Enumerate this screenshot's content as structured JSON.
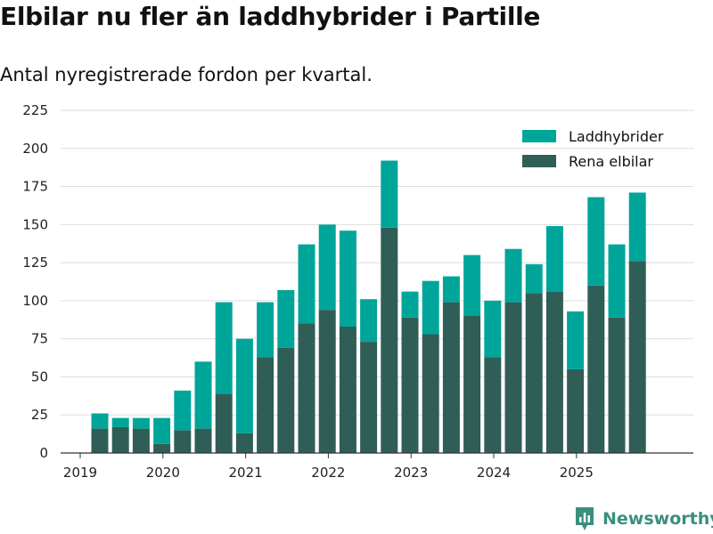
{
  "title": "Elbilar nu fler än laddhybrider i Partille",
  "subtitle": "Antal nyregistrerade fordon per kvartal.",
  "brand": "Newsworthy",
  "colors": {
    "laddhybrider": "#00a59a",
    "elbilar": "#2f5e56",
    "grid": "#dddddd",
    "axis": "#333333",
    "brand": "#3a8f7c"
  },
  "chart_data": {
    "type": "bar",
    "stacked": true,
    "title": "Elbilar nu fler än laddhybrider i Partille",
    "subtitle": "Antal nyregistrerade fordon per kvartal.",
    "xlabel": "",
    "ylabel": "",
    "ylim": [
      0,
      225
    ],
    "yticks": [
      0,
      25,
      50,
      75,
      100,
      125,
      150,
      175,
      200,
      225
    ],
    "year_ticks": [
      "2019",
      "2020",
      "2021",
      "2022",
      "2023",
      "2024",
      "2025"
    ],
    "grid": true,
    "legend_position": "top-right",
    "categories": [
      "2019 Q1",
      "2019 Q2",
      "2019 Q3",
      "2019 Q4",
      "2020 Q1",
      "2020 Q2",
      "2020 Q3",
      "2020 Q4",
      "2021 Q1",
      "2021 Q2",
      "2021 Q3",
      "2021 Q4",
      "2022 Q1",
      "2022 Q2",
      "2022 Q3",
      "2022 Q4",
      "2023 Q1",
      "2023 Q2",
      "2023 Q3",
      "2023 Q4",
      "2024 Q1",
      "2024 Q2",
      "2024 Q3",
      "2024 Q4",
      "2025 Q1",
      "2025 Q2",
      "2025 Q3",
      "2025 Q4"
    ],
    "series": [
      {
        "name": "Rena elbilar",
        "values": [
          16,
          17,
          16,
          6,
          15,
          16,
          39,
          13,
          63,
          69,
          85,
          94,
          83,
          73,
          148,
          89,
          78,
          99,
          90,
          63,
          99,
          105,
          106,
          55,
          110,
          89,
          126,
          0
        ]
      },
      {
        "name": "Laddhybrider",
        "values": [
          10,
          6,
          7,
          17,
          26,
          44,
          60,
          62,
          36,
          38,
          52,
          56,
          63,
          28,
          44,
          17,
          35,
          17,
          40,
          37,
          35,
          19,
          43,
          38,
          58,
          48,
          45,
          0
        ]
      }
    ]
  }
}
